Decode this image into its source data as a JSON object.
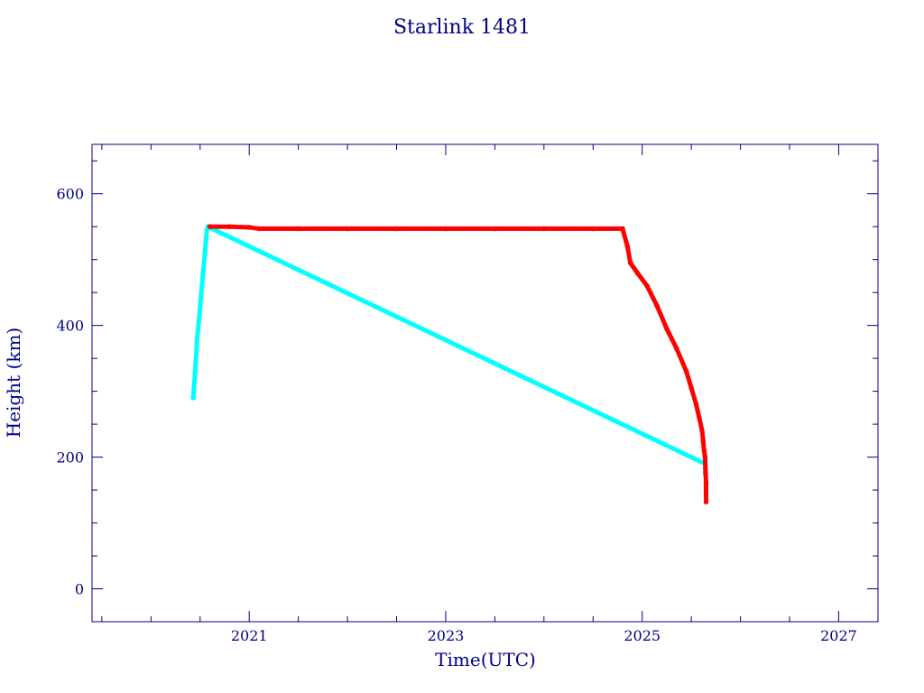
{
  "chart_data": {
    "type": "scatter",
    "title": "Starlink 1481",
    "xlabel": "Time(UTC)",
    "ylabel": "Height (km)",
    "xlim": [
      2019.4,
      2027.4
    ],
    "ylim": [
      -50,
      675
    ],
    "x_ticks": [
      2021,
      2023,
      2025,
      2027
    ],
    "y_ticks": [
      0,
      200,
      400,
      600
    ],
    "grid": false,
    "colors": {
      "axis": "#00008b",
      "series_a": "#00ffff",
      "series_b": "#ff0000"
    },
    "series": [
      {
        "color_key": "series_a",
        "x": [
          2020.43,
          2020.45,
          2020.47,
          2020.49,
          2020.51,
          2020.53,
          2020.55,
          2020.56,
          2020.57,
          2020.58,
          2025.64,
          2025.64
        ],
        "y": [
          290,
          330,
          380,
          410,
          445,
          480,
          510,
          530,
          545,
          550,
          190,
          175
        ]
      },
      {
        "color_key": "series_b",
        "x": [
          2020.6,
          2020.8,
          2021.0,
          2021.1,
          2021.5,
          2022.0,
          2022.5,
          2023.0,
          2023.5,
          2024.0,
          2024.5,
          2024.8,
          2024.85,
          2024.88,
          2024.95,
          2025.05,
          2025.15,
          2025.25,
          2025.35,
          2025.45,
          2025.5,
          2025.55,
          2025.58,
          2025.61,
          2025.62,
          2025.63,
          2025.64,
          2025.65,
          2025.65
        ],
        "y": [
          550,
          550,
          549,
          547,
          547,
          547,
          547,
          547,
          547,
          547,
          547,
          547,
          520,
          495,
          480,
          460,
          430,
          395,
          365,
          330,
          305,
          280,
          260,
          240,
          225,
          210,
          200,
          160,
          132
        ]
      }
    ]
  }
}
